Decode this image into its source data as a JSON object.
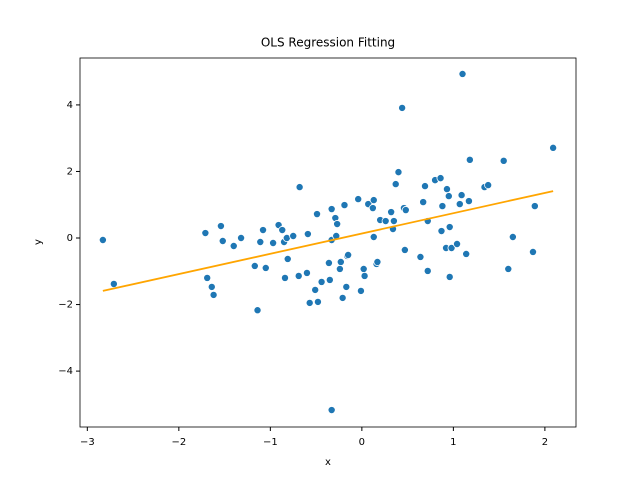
{
  "chart_data": {
    "type": "scatter",
    "title": "OLS Regression Fitting",
    "x_label": "x",
    "y_label": "y",
    "xlim": [
      -3.08,
      2.34
    ],
    "ylim": [
      -5.68,
      5.41
    ],
    "xticks": [
      {
        "value": -3,
        "label": "−3"
      },
      {
        "value": -2,
        "label": "−2"
      },
      {
        "value": -1,
        "label": "−1"
      },
      0,
      1,
      2
    ],
    "yticks": [
      {
        "value": -4,
        "label": "−4"
      },
      {
        "value": -2,
        "label": "−2"
      },
      0,
      2,
      4
    ],
    "series": [
      {
        "type": "scatter",
        "color": "#1f77b4",
        "x": [
          -2.83,
          -2.71,
          -1.71,
          -1.69,
          -1.64,
          -1.62,
          -1.54,
          -1.52,
          -1.4,
          -1.32,
          -1.17,
          -1.14,
          -1.11,
          -1.08,
          -1.05,
          -0.97,
          -0.91,
          -0.87,
          -0.85,
          -0.84,
          -0.82,
          -0.81,
          -0.75,
          -0.69,
          -0.68,
          -0.6,
          -0.59,
          -0.57,
          -0.51,
          -0.49,
          -0.48,
          -0.44,
          -0.36,
          -0.35,
          -0.33,
          -0.33,
          -0.33,
          -0.29,
          -0.28,
          -0.27,
          -0.24,
          -0.23,
          -0.21,
          -0.19,
          -0.17,
          -0.16,
          -0.15,
          -0.04,
          -0.01,
          0.02,
          0.03,
          0.07,
          0.12,
          0.13,
          0.13,
          0.16,
          0.17,
          0.2,
          0.26,
          0.32,
          0.34,
          0.35,
          0.37,
          0.4,
          0.44,
          0.46,
          0.47,
          0.48,
          0.64,
          0.67,
          0.69,
          0.72,
          0.72,
          0.8,
          0.86,
          0.87,
          0.88,
          0.92,
          0.93,
          0.95,
          0.96,
          0.96,
          0.98,
          1.04,
          1.07,
          1.09,
          1.1,
          1.14,
          1.17,
          1.18,
          1.34,
          1.38,
          1.55,
          1.6,
          1.65,
          1.87,
          1.89,
          2.09
        ],
        "values": [
          -0.06,
          -1.38,
          0.15,
          -1.2,
          -1.47,
          -1.71,
          0.36,
          -0.09,
          -0.24,
          0.0,
          -0.84,
          -2.17,
          -0.12,
          0.24,
          -0.9,
          -0.15,
          0.39,
          0.24,
          -0.12,
          -1.2,
          0.0,
          -0.63,
          0.06,
          -1.14,
          1.53,
          -1.05,
          0.12,
          -1.95,
          -1.56,
          0.72,
          -1.92,
          -1.32,
          -0.75,
          -1.26,
          -5.17,
          0.87,
          -0.06,
          0.6,
          0.06,
          0.42,
          -0.93,
          -0.72,
          -1.8,
          0.99,
          -1.47,
          -0.54,
          -0.51,
          1.17,
          -1.59,
          -0.93,
          -1.14,
          1.02,
          0.9,
          1.14,
          0.03,
          -0.78,
          -0.72,
          0.54,
          0.51,
          0.78,
          0.27,
          0.51,
          1.62,
          1.98,
          3.91,
          0.9,
          -0.36,
          0.84,
          -0.57,
          1.08,
          1.56,
          0.51,
          -0.99,
          1.74,
          1.8,
          0.21,
          0.96,
          -0.3,
          1.47,
          1.26,
          0.33,
          -1.17,
          -0.3,
          -0.18,
          1.02,
          1.29,
          4.93,
          -0.48,
          1.11,
          2.35,
          1.53,
          1.59,
          2.32,
          -0.93,
          0.03,
          -0.42,
          0.96,
          2.71
        ]
      },
      {
        "type": "line",
        "color": "orange",
        "x": [
          -2.83,
          2.09
        ],
        "values": [
          -1.59,
          1.41
        ]
      }
    ]
  }
}
